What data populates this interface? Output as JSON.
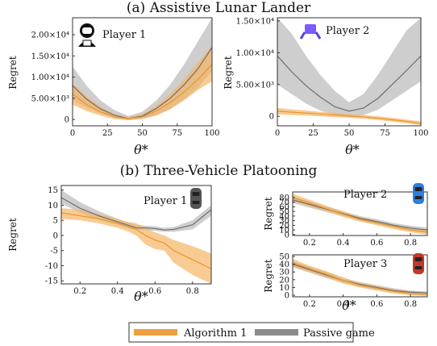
{
  "section_titles": {
    "top": "(a) Assistive Lunar Lander",
    "bottom": "(b) Three-Vehicle Platooning"
  },
  "legend": {
    "items": [
      {
        "label": "Algorithm 1",
        "color": "#f0a040"
      },
      {
        "label": "Passive game",
        "color": "#8c8c8c"
      }
    ]
  },
  "colors": {
    "algorithm_line": "#e8962e",
    "algorithm_band": "#f5b565",
    "passive_line": "#6e6e6e",
    "passive_band": "#bdbdbd"
  },
  "chart_data": [
    {
      "id": "lunar-player1",
      "type": "line",
      "title": "Player 1",
      "icon": "astronaut-icon",
      "xlabel": "θ*",
      "ylabel": "Regret",
      "xlim": [
        0,
        100
      ],
      "ylim": [
        -1500,
        24000
      ],
      "xticks": [
        0,
        25,
        50,
        75,
        100
      ],
      "yticks": [
        0,
        5000,
        10000,
        15000,
        20000
      ],
      "ytick_labels": [
        "0",
        "5.00×10³",
        "1.00×10⁴",
        "1.50×10⁴",
        "2.00×10⁴"
      ],
      "grid": false,
      "x": [
        0,
        10,
        20,
        30,
        40,
        50,
        60,
        70,
        80,
        90,
        100
      ],
      "series": [
        {
          "name": "Passive game",
          "values": [
            8000,
            4800,
            2500,
            1000,
            200,
            800,
            2600,
            5000,
            8200,
            12000,
            17000
          ],
          "lower": [
            4500,
            2800,
            1400,
            400,
            -200,
            200,
            1000,
            2500,
            4800,
            7500,
            11500
          ],
          "upper": [
            12500,
            8000,
            4500,
            2200,
            800,
            1800,
            4500,
            8200,
            13000,
            18500,
            24000
          ]
        },
        {
          "name": "Algorithm 1",
          "values": [
            6000,
            3500,
            1800,
            600,
            200,
            600,
            2000,
            4000,
            6500,
            9500,
            13000
          ],
          "lower": [
            3500,
            2000,
            900,
            100,
            -200,
            100,
            900,
            2400,
            4500,
            7000,
            9000
          ],
          "upper": [
            8500,
            5500,
            3000,
            1300,
            600,
            1300,
            3200,
            6000,
            9500,
            13500,
            17500
          ]
        }
      ]
    },
    {
      "id": "lunar-player2",
      "type": "line",
      "title": "Player 2",
      "icon": "lander-icon",
      "xlabel": "θ*",
      "ylabel": "Regret",
      "xlim": [
        0,
        100
      ],
      "ylim": [
        -1500,
        15500
      ],
      "xticks": [
        0,
        25,
        50,
        75,
        100
      ],
      "yticks": [
        0,
        5000,
        10000,
        15000
      ],
      "ytick_labels": [
        "0",
        "5.00×10³",
        "1.00×10⁴",
        "1.50×10⁴"
      ],
      "grid": false,
      "x": [
        0,
        10,
        20,
        30,
        40,
        50,
        60,
        70,
        80,
        90,
        100
      ],
      "series": [
        {
          "name": "Passive game",
          "values": [
            9500,
            7000,
            4800,
            3000,
            1500,
            800,
            1300,
            2800,
            5000,
            7200,
            9500
          ],
          "lower": [
            5000,
            3500,
            2000,
            900,
            200,
            -100,
            200,
            1000,
            2500,
            4000,
            5500
          ],
          "upper": [
            15500,
            13000,
            9500,
            6500,
            4000,
            2200,
            3500,
            6500,
            10000,
            13500,
            15500
          ]
        },
        {
          "name": "Algorithm 1",
          "values": [
            800,
            650,
            500,
            350,
            200,
            50,
            -100,
            -300,
            -550,
            -800,
            -1100
          ],
          "lower": [
            300,
            200,
            100,
            0,
            -150,
            -250,
            -400,
            -600,
            -850,
            -1100,
            -1400
          ],
          "upper": [
            1300,
            1100,
            900,
            700,
            550,
            350,
            200,
            0,
            -250,
            -500,
            -800
          ]
        }
      ]
    },
    {
      "id": "platoon-player1",
      "type": "line",
      "title": "Player 1",
      "icon": "car-gray-icon",
      "xlabel": "θ*",
      "ylabel": "Regret",
      "xlim": [
        0.1,
        0.9
      ],
      "ylim": [
        -16,
        16.5
      ],
      "xticks": [
        0.2,
        0.4,
        0.6,
        0.8
      ],
      "yticks": [
        -15,
        -10,
        -5,
        0,
        5,
        10,
        15
      ],
      "grid": false,
      "x": [
        0.1,
        0.2,
        0.3,
        0.4,
        0.45,
        0.5,
        0.55,
        0.6,
        0.65,
        0.7,
        0.8,
        0.9
      ],
      "series": [
        {
          "name": "Passive game",
          "values": [
            12.5,
            9.0,
            6.5,
            4.5,
            3.5,
            2.5,
            2.5,
            2.3,
            1.8,
            2.0,
            3.5,
            8.5
          ],
          "lower": [
            10.5,
            7.5,
            5.0,
            3.5,
            2.5,
            1.8,
            1.8,
            1.5,
            1.2,
            1.2,
            2.0,
            6.5
          ],
          "upper": [
            15.0,
            11.0,
            8.0,
            5.5,
            4.5,
            3.5,
            3.2,
            3.0,
            2.5,
            2.8,
            5.0,
            10.0
          ]
        },
        {
          "name": "Algorithm 1",
          "values": [
            7.5,
            6.5,
            5.5,
            4.0,
            3.0,
            2.0,
            0.0,
            -1.5,
            -2.5,
            -5.0,
            -8.0,
            -11.0
          ],
          "lower": [
            5.5,
            5.0,
            4.0,
            2.5,
            1.5,
            0.0,
            -3.0,
            -4.5,
            -5.0,
            -9.0,
            -13.0,
            -16.0
          ],
          "upper": [
            9.0,
            8.5,
            7.0,
            5.5,
            4.5,
            4.0,
            2.5,
            1.0,
            0.0,
            -1.5,
            -3.5,
            -6.0
          ]
        }
      ]
    },
    {
      "id": "platoon-player2",
      "type": "line",
      "title": "Player 2",
      "icon": "car-blue-icon",
      "xlabel": "",
      "ylabel": "Regret",
      "xlim": [
        0.1,
        0.9
      ],
      "ylim": [
        -2,
        92
      ],
      "xticks": [
        0.2,
        0.4,
        0.6,
        0.8
      ],
      "yticks": [
        0,
        10,
        20,
        30,
        40,
        50,
        60,
        70,
        80
      ],
      "grid": false,
      "x": [
        0.1,
        0.2,
        0.3,
        0.4,
        0.5,
        0.6,
        0.7,
        0.8,
        0.9
      ],
      "series": [
        {
          "name": "Passive game",
          "values": [
            75,
            65,
            55,
            45,
            35,
            28,
            20,
            14,
            10
          ],
          "lower": [
            68,
            58,
            49,
            40,
            30,
            23,
            16,
            10,
            6
          ],
          "upper": [
            82,
            72,
            61,
            50,
            40,
            33,
            25,
            19,
            15
          ]
        },
        {
          "name": "Algorithm 1",
          "values": [
            80,
            68,
            56,
            44,
            33,
            25,
            17,
            10,
            5
          ],
          "lower": [
            72,
            61,
            50,
            38,
            28,
            20,
            12,
            5,
            0
          ],
          "upper": [
            88,
            75,
            62,
            50,
            38,
            30,
            22,
            15,
            10
          ]
        }
      ]
    },
    {
      "id": "platoon-player3",
      "type": "line",
      "title": "Player 3",
      "icon": "car-red-icon",
      "xlabel": "θ*",
      "ylabel": "Regret",
      "xlim": [
        0.1,
        0.9
      ],
      "ylim": [
        -2,
        52
      ],
      "xticks": [
        0.2,
        0.4,
        0.6,
        0.8
      ],
      "yticks": [
        0,
        10,
        20,
        30,
        40,
        50
      ],
      "grid": false,
      "x": [
        0.1,
        0.2,
        0.3,
        0.4,
        0.5,
        0.6,
        0.7,
        0.8,
        0.9
      ],
      "series": [
        {
          "name": "Passive game",
          "values": [
            40,
            33,
            26,
            19,
            14,
            10,
            6,
            4,
            3
          ],
          "lower": [
            36,
            29,
            22,
            16,
            11,
            7,
            4,
            2,
            1
          ],
          "upper": [
            44,
            37,
            30,
            22,
            17,
            13,
            9,
            6,
            5
          ]
        },
        {
          "name": "Algorithm 1",
          "values": [
            42,
            34,
            27,
            19,
            13,
            9,
            5,
            2,
            1
          ],
          "lower": [
            37,
            30,
            23,
            15,
            10,
            6,
            2,
            0,
            -1
          ],
          "upper": [
            47,
            38,
            31,
            23,
            16,
            12,
            8,
            5,
            3
          ]
        }
      ]
    }
  ]
}
